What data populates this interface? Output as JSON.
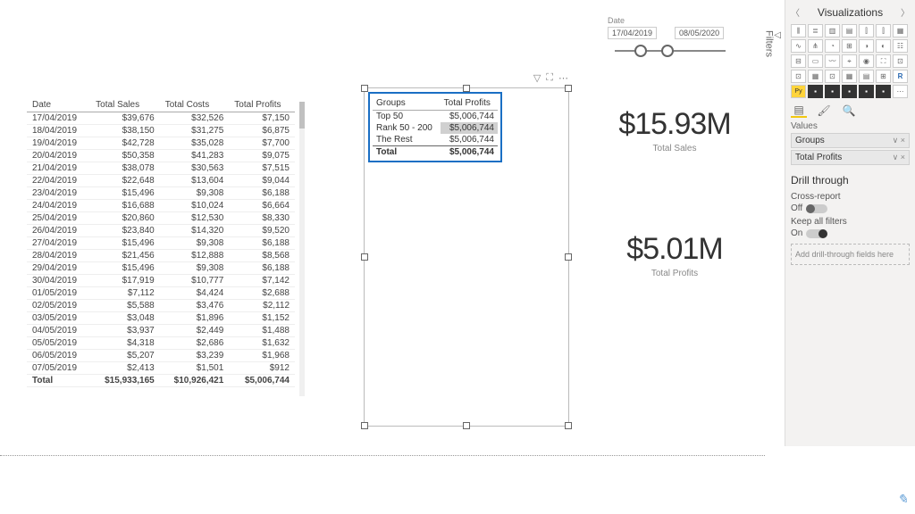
{
  "left_table": {
    "columns": [
      "Date",
      "Total Sales",
      "Total Costs",
      "Total Profits"
    ],
    "rows": [
      [
        "17/04/2019",
        "$39,676",
        "$32,526",
        "$7,150"
      ],
      [
        "18/04/2019",
        "$38,150",
        "$31,275",
        "$6,875"
      ],
      [
        "19/04/2019",
        "$42,728",
        "$35,028",
        "$7,700"
      ],
      [
        "20/04/2019",
        "$50,358",
        "$41,283",
        "$9,075"
      ],
      [
        "21/04/2019",
        "$38,078",
        "$30,563",
        "$7,515"
      ],
      [
        "22/04/2019",
        "$22,648",
        "$13,604",
        "$9,044"
      ],
      [
        "23/04/2019",
        "$15,496",
        "$9,308",
        "$6,188"
      ],
      [
        "24/04/2019",
        "$16,688",
        "$10,024",
        "$6,664"
      ],
      [
        "25/04/2019",
        "$20,860",
        "$12,530",
        "$8,330"
      ],
      [
        "26/04/2019",
        "$23,840",
        "$14,320",
        "$9,520"
      ],
      [
        "27/04/2019",
        "$15,496",
        "$9,308",
        "$6,188"
      ],
      [
        "28/04/2019",
        "$21,456",
        "$12,888",
        "$8,568"
      ],
      [
        "29/04/2019",
        "$15,496",
        "$9,308",
        "$6,188"
      ],
      [
        "30/04/2019",
        "$17,919",
        "$10,777",
        "$7,142"
      ],
      [
        "01/05/2019",
        "$7,112",
        "$4,424",
        "$2,688"
      ],
      [
        "02/05/2019",
        "$5,588",
        "$3,476",
        "$2,112"
      ],
      [
        "03/05/2019",
        "$3,048",
        "$1,896",
        "$1,152"
      ],
      [
        "04/05/2019",
        "$3,937",
        "$2,449",
        "$1,488"
      ],
      [
        "05/05/2019",
        "$4,318",
        "$2,686",
        "$1,632"
      ],
      [
        "06/05/2019",
        "$5,207",
        "$3,239",
        "$1,968"
      ],
      [
        "07/05/2019",
        "$2,413",
        "$1,501",
        "$912"
      ]
    ],
    "total": [
      "Total",
      "$15,933,165",
      "$10,926,421",
      "$5,006,744"
    ]
  },
  "groups_table": {
    "columns": [
      "Groups",
      "Total Profits"
    ],
    "rows": [
      [
        "Top 50",
        "$5,006,744"
      ],
      [
        "Rank 50 - 200",
        "$5,006,744"
      ],
      [
        "The Rest",
        "$5,006,744"
      ]
    ],
    "total": [
      "Total",
      "$5,006,744"
    ],
    "highlight_border": "#1a6fc4"
  },
  "slicer": {
    "label": "Date",
    "start": "17/04/2019",
    "end": "08/05/2020"
  },
  "cards": {
    "sales": {
      "value": "$15.93M",
      "label": "Total Sales"
    },
    "profits": {
      "value": "$5.01M",
      "label": "Total Profits"
    }
  },
  "center_toolbar": {
    "filter": "▽",
    "focus": "⛶",
    "more": "⋯"
  },
  "filters_tab": "Filters",
  "viz_panel": {
    "title": "Visualizations",
    "values_label": "Values",
    "fields": [
      {
        "name": "Groups",
        "suffix": "∨ ×"
      },
      {
        "name": "Total Profits",
        "suffix": "∨ ×"
      }
    ],
    "drill": {
      "title": "Drill through",
      "cross_label": "Cross-report",
      "cross_state": "Off",
      "keep_label": "Keep all filters",
      "keep_state": "On",
      "drop_text": "Add drill-through fields here"
    }
  },
  "palette": {
    "selected": "#f2c811",
    "panel_bg": "#f3f2f1"
  }
}
